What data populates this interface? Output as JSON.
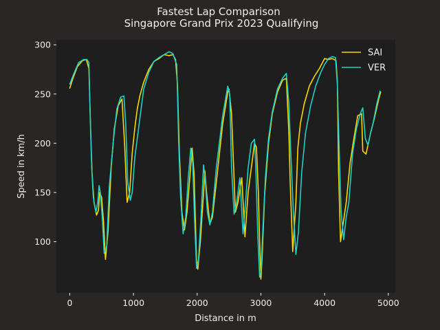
{
  "chart_data": {
    "type": "line",
    "title": "Fastest Lap Comparison",
    "subtitle": "Singapore Grand Prix 2023 Qualifying",
    "xlabel": "Distance in m",
    "ylabel": "Speed in km/h",
    "xlim": [
      -210,
      5110
    ],
    "ylim": [
      48,
      305
    ],
    "xticks": [
      0,
      1000,
      2000,
      3000,
      4000,
      5000
    ],
    "yticks": [
      100,
      150,
      200,
      250,
      300
    ],
    "grid": false,
    "legend_position": "top-right",
    "colors": {
      "figure_bg": "#292625",
      "axes_bg": "#1e1e1e",
      "text": "#f0f0f0"
    },
    "series": [
      {
        "name": "SAI",
        "color": "#FFD700",
        "x": [
          0,
          50,
          120,
          200,
          260,
          300,
          330,
          350,
          380,
          420,
          450,
          470,
          500,
          530,
          560,
          600,
          650,
          700,
          760,
          820,
          860,
          900,
          940,
          980,
          1020,
          1060,
          1100,
          1160,
          1240,
          1320,
          1400,
          1480,
          1560,
          1620,
          1660,
          1690,
          1720,
          1760,
          1800,
          1840,
          1880,
          1920,
          1950,
          1990,
          2010,
          2050,
          2100,
          2120,
          2150,
          2200,
          2240,
          2300,
          2400,
          2480,
          2500,
          2540,
          2600,
          2640,
          2700,
          2750,
          2800,
          2860,
          2900,
          2930,
          2960,
          2980,
          3000,
          3020,
          3060,
          3120,
          3180,
          3260,
          3340,
          3400,
          3440,
          3460,
          3500,
          3550,
          3580,
          3620,
          3680,
          3760,
          3840,
          3920,
          4000,
          4060,
          4120,
          4180,
          4200,
          4220,
          4250,
          4300,
          4340,
          4400,
          4460,
          4520,
          4580,
          4600,
          4650,
          4680,
          4720,
          4780,
          4850,
          4880
        ],
        "y": [
          256,
          266,
          278,
          284,
          285,
          276,
          210,
          170,
          140,
          127,
          132,
          150,
          145,
          120,
          82,
          110,
          175,
          215,
          238,
          245,
          200,
          140,
          150,
          190,
          215,
          235,
          248,
          262,
          275,
          283,
          286,
          290,
          289,
          290,
          285,
          260,
          190,
          130,
          112,
          130,
          162,
          195,
          170,
          80,
          72,
          100,
          150,
          172,
          148,
          118,
          125,
          160,
          220,
          252,
          255,
          230,
          130,
          140,
          165,
          105,
          150,
          180,
          200,
          196,
          150,
          100,
          62,
          85,
          148,
          200,
          230,
          252,
          264,
          266,
          210,
          160,
          90,
          140,
          195,
          220,
          240,
          258,
          268,
          276,
          286,
          285,
          286,
          284,
          262,
          170,
          100,
          122,
          140,
          180,
          205,
          228,
          230,
          192,
          189,
          198,
          210,
          225,
          245,
          252
        ]
      },
      {
        "name": "VER",
        "color": "#1ED2C8",
        "x": [
          0,
          60,
          140,
          220,
          270,
          300,
          320,
          345,
          370,
          410,
          440,
          460,
          480,
          510,
          540,
          580,
          620,
          680,
          740,
          800,
          850,
          880,
          910,
          950,
          980,
          1020,
          1060,
          1100,
          1160,
          1240,
          1320,
          1400,
          1480,
          1560,
          1620,
          1650,
          1680,
          1710,
          1740,
          1780,
          1820,
          1860,
          1900,
          1930,
          1960,
          1990,
          2020,
          2060,
          2100,
          2130,
          2160,
          2200,
          2240,
          2300,
          2400,
          2480,
          2510,
          2540,
          2580,
          2620,
          2670,
          2720,
          2760,
          2800,
          2850,
          2900,
          2920,
          2950,
          2980,
          3000,
          3030,
          3070,
          3120,
          3180,
          3260,
          3340,
          3400,
          3440,
          3470,
          3510,
          3550,
          3590,
          3640,
          3700,
          3780,
          3860,
          3940,
          4000,
          4060,
          4120,
          4170,
          4200,
          4230,
          4260,
          4300,
          4340,
          4380,
          4440,
          4500,
          4560,
          4600,
          4640,
          4680,
          4720,
          4760,
          4820,
          4870
        ],
        "y": [
          260,
          270,
          282,
          285,
          285,
          282,
          230,
          175,
          145,
          130,
          140,
          157,
          150,
          125,
          88,
          95,
          155,
          200,
          235,
          247,
          248,
          218,
          160,
          142,
          150,
          185,
          205,
          225,
          255,
          272,
          283,
          287,
          290,
          293,
          291,
          285,
          280,
          200,
          145,
          108,
          125,
          165,
          195,
          180,
          120,
          73,
          82,
          125,
          178,
          160,
          130,
          117,
          130,
          175,
          228,
          258,
          250,
          175,
          128,
          140,
          165,
          108,
          140,
          175,
          200,
          204,
          175,
          110,
          64,
          70,
          110,
          165,
          205,
          232,
          255,
          266,
          271,
          240,
          190,
          130,
          87,
          110,
          170,
          210,
          238,
          258,
          272,
          280,
          286,
          288,
          287,
          260,
          190,
          130,
          102,
          125,
          140,
          190,
          215,
          230,
          236,
          205,
          198,
          210,
          220,
          240,
          253
        ]
      }
    ]
  }
}
